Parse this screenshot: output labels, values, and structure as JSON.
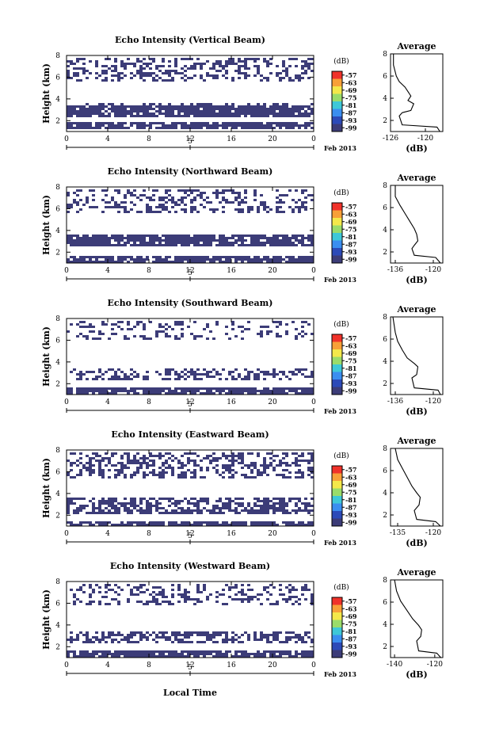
{
  "figure": {
    "month_label": "Feb 2013",
    "x_axis_label": "Local Time",
    "date_marker": "5",
    "colorbar_unit": "(dB)",
    "colorbar_levels": [
      "-57",
      "-63",
      "-69",
      "-75",
      "-81",
      "-87",
      "-93",
      "-99"
    ],
    "colormap": [
      "#f0322a",
      "#f8a038",
      "#f4e84a",
      "#9adc6a",
      "#3ec8d8",
      "#3a8ef0",
      "#2c4ab8",
      "#3c3c78"
    ],
    "echo_color": "#3c3c78"
  },
  "chart_data": [
    {
      "type": "heatmap",
      "title": "Echo Intensity (Vertical Beam)",
      "ylabel": "Height (km)",
      "x_ticks": [
        "0",
        "4",
        "8",
        "12",
        "16",
        "20",
        "0"
      ],
      "y_ticks": [
        "2",
        "4",
        "6",
        "8"
      ],
      "xlim": [
        0,
        24
      ],
      "ylim": [
        1,
        8
      ],
      "echo_layers": [
        [
          1.2,
          1.8,
          0.85
        ],
        [
          2.3,
          3.4,
          0.9
        ],
        [
          3.4,
          3.7,
          0.4
        ],
        [
          5.6,
          7.8,
          0.35
        ]
      ],
      "average_profile": {
        "title": "Average",
        "xlabel": "(dB)",
        "x_ticks": [
          "-126",
          "-120"
        ],
        "xlim": [
          -126,
          -117
        ],
        "ylim": [
          1,
          8
        ],
        "y_ticks": [
          "2",
          "4",
          "6",
          "8"
        ],
        "x": [
          -117.5,
          -118,
          -124,
          -124.5,
          -124,
          -122.5,
          -122,
          -123,
          -122.5,
          -123,
          -123.5,
          -124.5,
          -125,
          -125.5,
          -125.5
        ],
        "y": [
          1.0,
          1.4,
          1.6,
          2.4,
          2.7,
          2.9,
          3.5,
          3.8,
          4.2,
          4.6,
          5.0,
          5.5,
          6.0,
          7.0,
          8.0
        ]
      }
    },
    {
      "type": "heatmap",
      "title": "Echo Intensity (Northward Beam)",
      "ylabel": "Height (km)",
      "x_ticks": [
        "0",
        "4",
        "8",
        "12",
        "16",
        "20",
        "0"
      ],
      "y_ticks": [
        "2",
        "4",
        "6",
        "8"
      ],
      "xlim": [
        0,
        24
      ],
      "ylim": [
        1,
        8
      ],
      "echo_layers": [
        [
          1.0,
          1.6,
          0.85
        ],
        [
          2.5,
          3.6,
          0.85
        ],
        [
          5.5,
          7.8,
          0.35
        ]
      ],
      "average_profile": {
        "title": "Average",
        "xlabel": "(dB)",
        "x_ticks": [
          "-136",
          "-120"
        ],
        "xlim": [
          -138,
          -116
        ],
        "ylim": [
          1,
          8
        ],
        "y_ticks": [
          "2",
          "4",
          "6",
          "8"
        ],
        "x": [
          -117,
          -119,
          -128,
          -129,
          -128,
          -126.5,
          -127,
          -128,
          -130,
          -132,
          -134,
          -136,
          -136
        ],
        "y": [
          1.0,
          1.5,
          1.7,
          2.3,
          2.6,
          3.0,
          3.6,
          4.1,
          4.8,
          5.5,
          6.2,
          7.0,
          8.0
        ]
      }
    },
    {
      "type": "heatmap",
      "title": "Echo Intensity (Southward Beam)",
      "ylabel": "Height (km)",
      "x_ticks": [
        "0",
        "4",
        "8",
        "12",
        "16",
        "20",
        "0"
      ],
      "y_ticks": [
        "2",
        "4",
        "6",
        "8"
      ],
      "xlim": [
        0,
        24
      ],
      "ylim": [
        1,
        8
      ],
      "echo_layers": [
        [
          1.0,
          1.6,
          0.85
        ],
        [
          2.4,
          3.5,
          0.45
        ],
        [
          6.0,
          7.8,
          0.25
        ]
      ],
      "average_profile": {
        "title": "Average",
        "xlabel": "(dB)",
        "x_ticks": [
          "-136",
          "-120"
        ],
        "xlim": [
          -138,
          -116
        ],
        "ylim": [
          1,
          8
        ],
        "y_ticks": [
          "2",
          "4",
          "6",
          "8"
        ],
        "x": [
          -117,
          -118,
          -128,
          -129,
          -127,
          -126.5,
          -128,
          -131,
          -133,
          -135,
          -136,
          -137
        ],
        "y": [
          1.0,
          1.4,
          1.6,
          2.5,
          2.8,
          3.5,
          3.8,
          4.3,
          5.0,
          5.8,
          6.6,
          8.0
        ]
      }
    },
    {
      "type": "heatmap",
      "title": "Echo Intensity (Eastward Beam)",
      "ylabel": "Height (km)",
      "x_ticks": [
        "0",
        "4",
        "8",
        "12",
        "16",
        "20",
        "0"
      ],
      "y_ticks": [
        "2",
        "4",
        "6",
        "8"
      ],
      "xlim": [
        0,
        24
      ],
      "ylim": [
        1,
        8
      ],
      "echo_layers": [
        [
          1.0,
          1.5,
          0.85
        ],
        [
          2.2,
          3.6,
          0.6
        ],
        [
          5.4,
          7.8,
          0.45
        ]
      ],
      "average_profile": {
        "title": "Average",
        "xlabel": "(dB)",
        "x_ticks": [
          "-135",
          "-120"
        ],
        "xlim": [
          -138,
          -116
        ],
        "ylim": [
          1,
          8
        ],
        "y_ticks": [
          "2",
          "4",
          "6",
          "8"
        ],
        "x": [
          -117,
          -119,
          -127,
          -128,
          -126,
          -125.5,
          -127,
          -129,
          -131,
          -133,
          -135,
          -136
        ],
        "y": [
          1.0,
          1.4,
          1.6,
          2.4,
          2.9,
          3.6,
          4.0,
          4.6,
          5.4,
          6.2,
          7.0,
          8.0
        ]
      }
    },
    {
      "type": "heatmap",
      "title": "Echo Intensity (Westward Beam)",
      "ylabel": "Height (km)",
      "x_ticks": [
        "0",
        "4",
        "8",
        "12",
        "16",
        "20",
        "0"
      ],
      "y_ticks": [
        "2",
        "4",
        "6",
        "8"
      ],
      "xlim": [
        0,
        24
      ],
      "ylim": [
        1,
        8
      ],
      "echo_layers": [
        [
          1.0,
          1.6,
          0.85
        ],
        [
          2.4,
          3.3,
          0.5
        ],
        [
          5.8,
          7.8,
          0.3
        ]
      ],
      "average_profile": {
        "title": "Average",
        "xlabel": "(dB)",
        "x_ticks": [
          "-140",
          "-120"
        ],
        "xlim": [
          -142,
          -116
        ],
        "ylim": [
          1,
          8
        ],
        "y_ticks": [
          "2",
          "4",
          "6",
          "8"
        ],
        "x": [
          -117,
          -119,
          -128,
          -129,
          -127,
          -126.5,
          -128,
          -131,
          -134,
          -137,
          -139,
          -140
        ],
        "y": [
          1.0,
          1.4,
          1.6,
          2.5,
          2.9,
          3.5,
          3.9,
          4.5,
          5.3,
          6.1,
          7.0,
          8.0
        ]
      }
    }
  ]
}
